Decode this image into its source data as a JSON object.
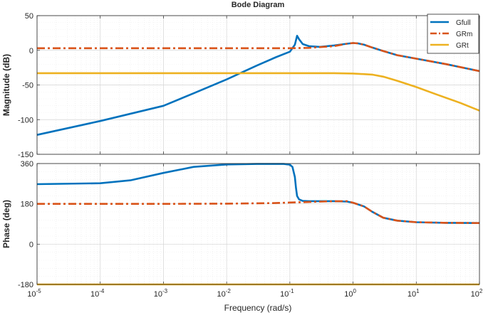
{
  "chart_data": {
    "type": "line",
    "title": "Bode Diagram",
    "xlabel": "Frequency  (rad/s)",
    "x_scale": "log",
    "xlim": [
      1e-05,
      100
    ],
    "x_ticks": [
      {
        "value": 1e-05,
        "base": "10",
        "exp": "-5"
      },
      {
        "value": 0.0001,
        "base": "10",
        "exp": "-4"
      },
      {
        "value": 0.001,
        "base": "10",
        "exp": "-3"
      },
      {
        "value": 0.01,
        "base": "10",
        "exp": "-2"
      },
      {
        "value": 0.1,
        "base": "10",
        "exp": "-1"
      },
      {
        "value": 1,
        "base": "10",
        "exp": "0"
      },
      {
        "value": 10,
        "base": "10",
        "exp": "1"
      },
      {
        "value": 100,
        "base": "10",
        "exp": "2"
      }
    ],
    "grid": true,
    "legend_position": "top-right",
    "colors": {
      "Gfull": "#0072BD",
      "GRm": "#D95319",
      "GRt": "#EDB120"
    },
    "panels": [
      {
        "ylabel": "Magnitude (dB)",
        "ylim": [
          -150,
          50
        ],
        "y_ticks": [
          {
            "value": 50,
            "label": "50"
          },
          {
            "value": 0,
            "label": "0"
          },
          {
            "value": -50,
            "label": "-50"
          },
          {
            "value": -100,
            "label": "-100"
          },
          {
            "value": -150,
            "label": "-150"
          }
        ],
        "series": [
          {
            "name": "Gfull",
            "style": "solid",
            "x": [
              1e-05,
              0.0001,
              0.001,
              0.003,
              0.01,
              0.03,
              0.06,
              0.1,
              0.12,
              0.13,
              0.14,
              0.16,
              0.2,
              0.3,
              0.5,
              0.8,
              1,
              1.2,
              1.5,
              2,
              3,
              5,
              10,
              30,
              100
            ],
            "y": [
              -122,
              -102,
              -80,
              -62,
              -42,
              -22,
              -10,
              -2,
              8,
              21,
              16,
              9,
              6,
              5,
              7,
              9.5,
              10.5,
              10,
              8,
              4,
              -1,
              -7,
              -12,
              -20,
              -30
            ]
          },
          {
            "name": "GRm",
            "style": "dashdot",
            "x": [
              1e-05,
              0.001,
              0.01,
              0.1,
              0.2,
              0.5,
              0.8,
              1,
              1.2,
              1.5,
              2,
              3,
              5,
              10,
              30,
              100
            ],
            "y": [
              3,
              3,
              3,
              3,
              3.5,
              6,
              9.5,
              10.5,
              10,
              8,
              4,
              -1,
              -7,
              -12,
              -20,
              -30
            ]
          },
          {
            "name": "GRt",
            "style": "solid",
            "x": [
              1e-05,
              0.01,
              0.1,
              0.5,
              1,
              2,
              3,
              5,
              10,
              20,
              50,
              100
            ],
            "y": [
              -33,
              -33,
              -33,
              -33,
              -33.5,
              -35,
              -38,
              -44,
              -53,
              -63,
              -76,
              -87
            ]
          }
        ]
      },
      {
        "ylabel": "Phase (deg)",
        "ylim": [
          -180,
          360
        ],
        "y_ticks": [
          {
            "value": 360,
            "label": "360"
          },
          {
            "value": 180,
            "label": "180"
          },
          {
            "value": 0,
            "label": "0"
          },
          {
            "value": -180,
            "label": "-180"
          }
        ],
        "series": [
          {
            "name": "Gfull",
            "style": "solid",
            "x": [
              1e-05,
              0.0001,
              0.0003,
              0.001,
              0.003,
              0.01,
              0.03,
              0.08,
              0.1,
              0.11,
              0.12,
              0.125,
              0.13,
              0.14,
              0.16,
              0.2,
              0.3,
              0.5,
              0.8,
              1,
              1.5,
              2,
              3,
              5,
              10,
              30,
              100
            ],
            "y": [
              268,
              272,
              285,
              318,
              345,
              356,
              358,
              358,
              355,
              345,
              300,
              250,
              215,
              200,
              193,
              192,
              192,
              192,
              190,
              185,
              168,
              145,
              118,
              105,
              98,
              95,
              94
            ]
          },
          {
            "name": "GRm",
            "style": "dashdot",
            "x": [
              1e-05,
              0.001,
              0.01,
              0.05,
              0.1,
              0.2,
              0.4,
              0.8,
              1,
              1.5,
              2,
              3,
              5,
              10,
              30,
              100
            ],
            "y": [
              180,
              180,
              181,
              183,
              186,
              188,
              191,
              192,
              185,
              168,
              145,
              118,
              105,
              98,
              95,
              94
            ]
          },
          {
            "name": "GRt",
            "style": "solid",
            "x": [
              1e-05,
              100
            ],
            "y": [
              -180,
              -180
            ]
          }
        ]
      }
    ]
  }
}
